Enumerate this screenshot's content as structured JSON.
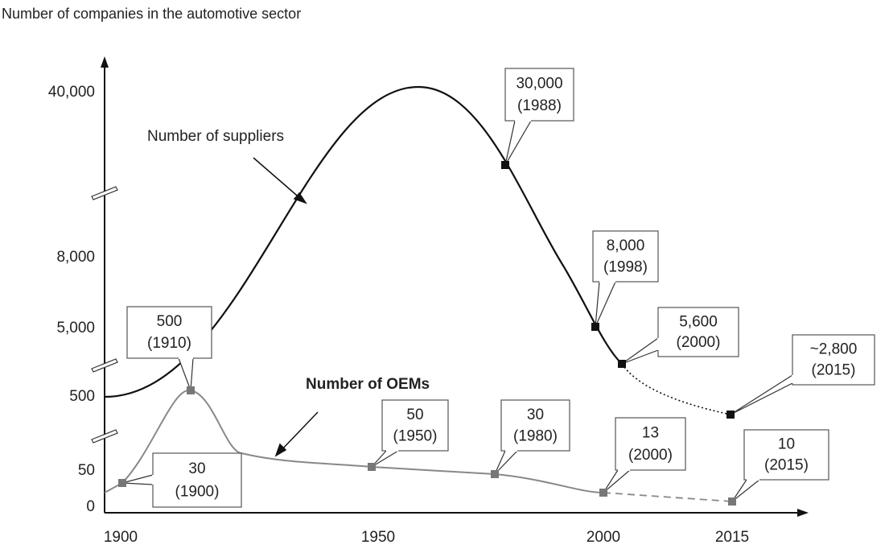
{
  "title": "Number of companies in the automotive sector",
  "y_axis": {
    "labels": [
      "40,000",
      "8,000",
      "5,000",
      "500",
      "50",
      "0"
    ]
  },
  "x_axis": {
    "labels": [
      "1900",
      "1950",
      "2000",
      "2015"
    ]
  },
  "series_labels": {
    "suppliers": "Number of suppliers",
    "oems": "Number of OEMs"
  },
  "callouts": [
    {
      "value": "30,000",
      "year": "(1988)"
    },
    {
      "value": "8,000",
      "year": "(1998)"
    },
    {
      "value": "5,600",
      "year": "(2000)"
    },
    {
      "value": "~2,800",
      "year": "(2015)"
    },
    {
      "value": "500",
      "year": "(1910)"
    },
    {
      "value": "30",
      "year": "(1900)"
    },
    {
      "value": "50",
      "year": "(1950)"
    },
    {
      "value": "30",
      "year": "(1980)"
    },
    {
      "value": "13",
      "year": "(2000)"
    },
    {
      "value": "10",
      "year": "(2015)"
    }
  ]
}
